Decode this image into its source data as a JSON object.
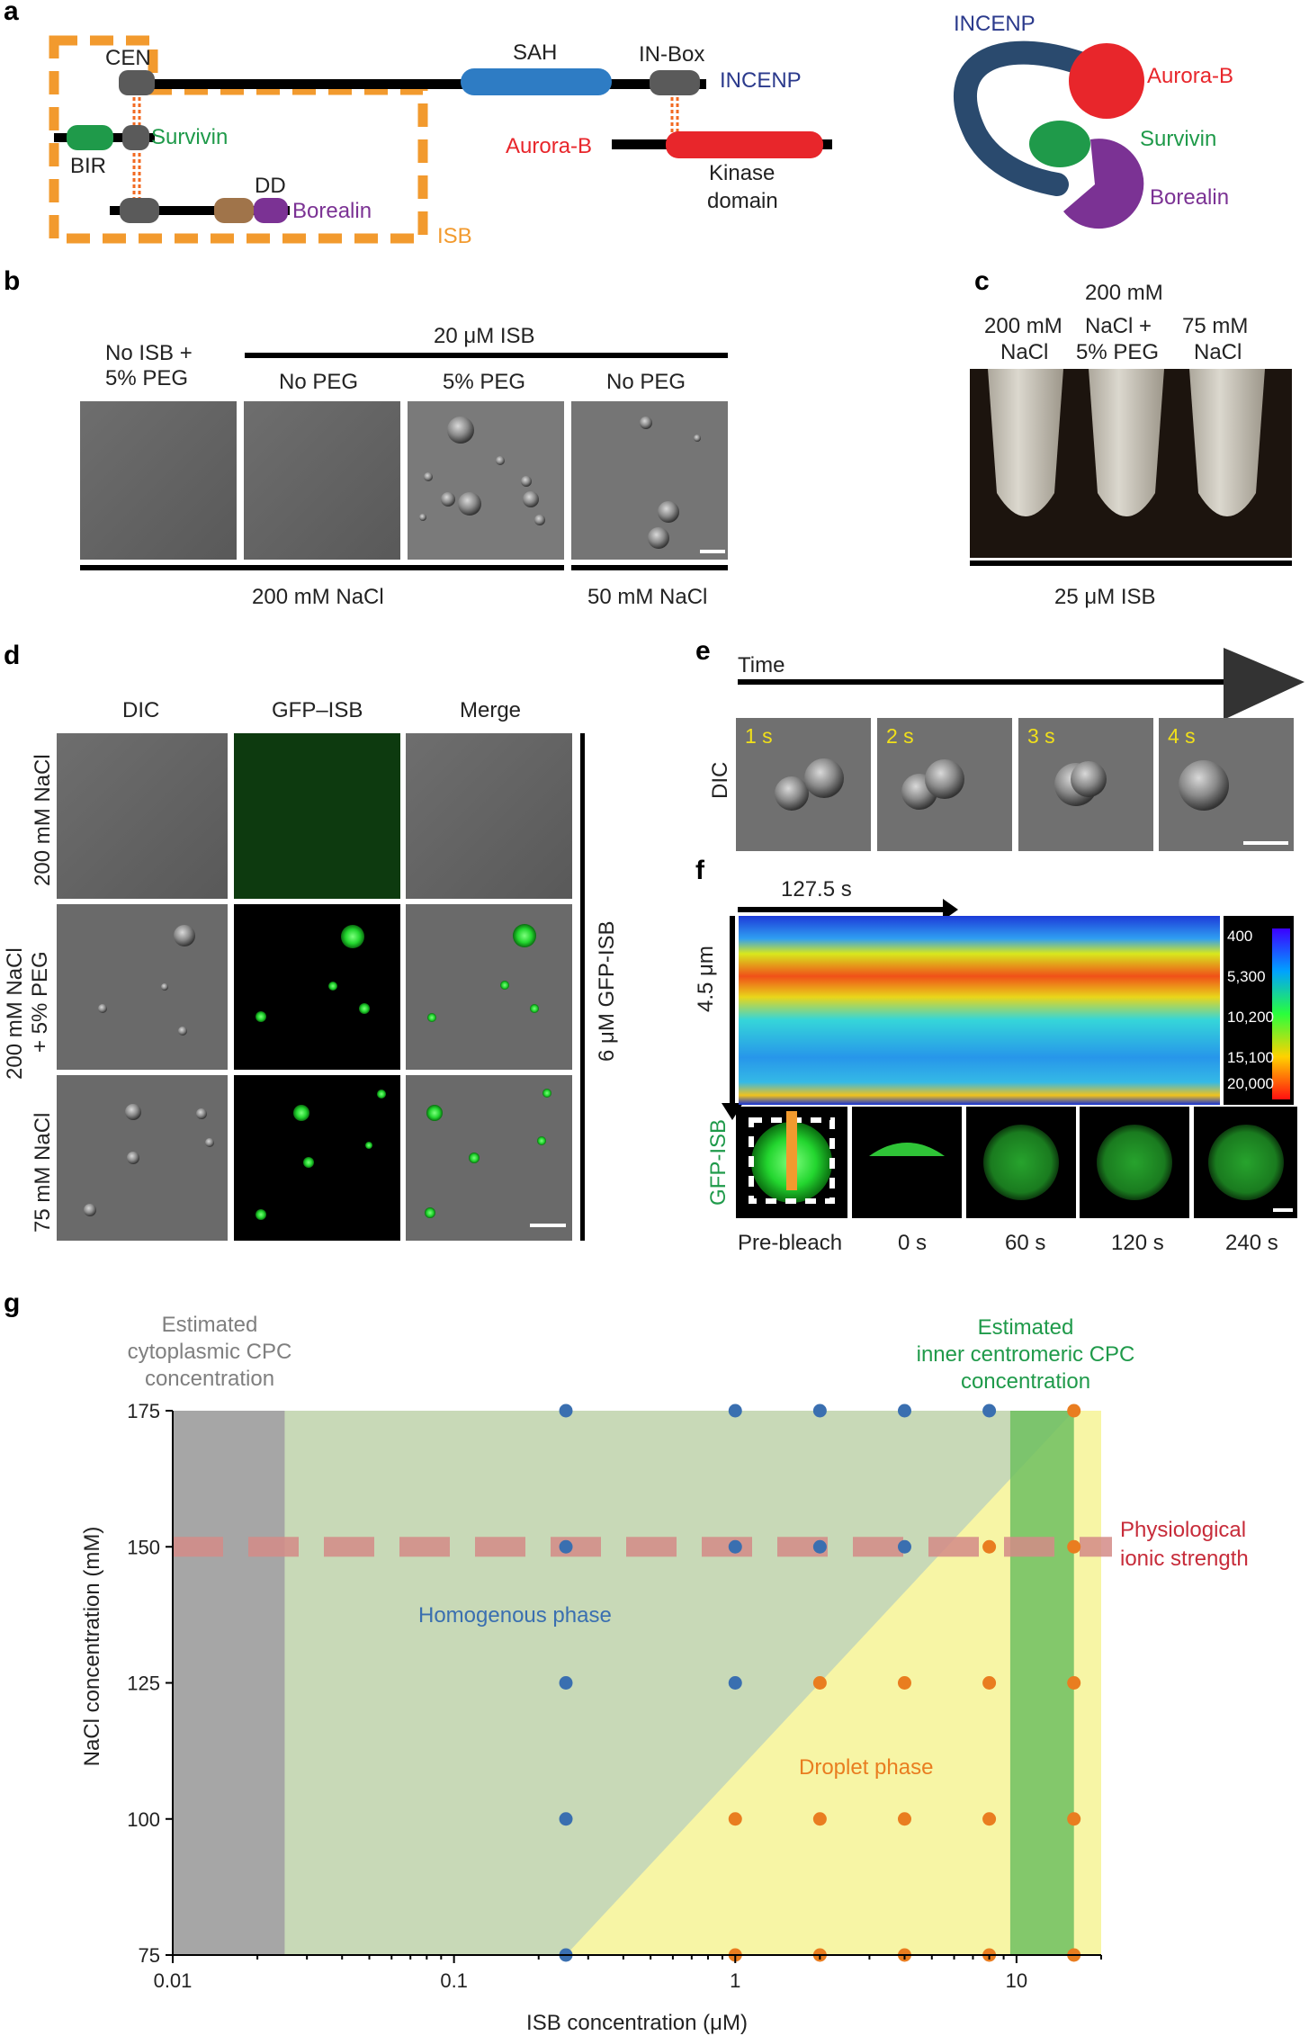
{
  "panels": {
    "a": "a",
    "b": "b",
    "c": "c",
    "d": "d",
    "e": "e",
    "f": "f",
    "g": "g"
  },
  "a": {
    "cen": "CEN",
    "sah": "SAH",
    "inbox": "IN-Box",
    "incenp": "INCENP",
    "bir": "BIR",
    "survivin": "Survivin",
    "aurorab": "Aurora-B",
    "kinase1": "Kinase",
    "kinase2": "domain",
    "dd": "DD",
    "borealin": "Borealin",
    "isb": "ISB",
    "colors": {
      "incenp": "#2b3a8c",
      "sah": "#2e7cc4",
      "aurora": "#e8262b",
      "survivin": "#1f9a4a",
      "borealin": "#7b3294",
      "isb": "#f29a2e",
      "gray": "#5a5a5a",
      "brown": "#a0744a"
    }
  },
  "b": {
    "cond1a": "No ISB +",
    "cond1b": "5% PEG",
    "isb20": "20 μM ISB",
    "nopeg1": "No PEG",
    "peg5": "5% PEG",
    "nopeg2": "No PEG",
    "nacl200": "200 mM NaCl",
    "nacl50": "50 mM NaCl"
  },
  "c": {
    "t1a": "200 mM",
    "t1b": "NaCl",
    "t2a": "200 mM",
    "t2b": "NaCl +",
    "t2c": "5% PEG",
    "t3a": "75 mM",
    "t3b": "NaCl",
    "isb25": "25 μM ISB"
  },
  "d": {
    "dic": "DIC",
    "gfp": "GFP–ISB",
    "merge": "Merge",
    "row1": "200 mM NaCl",
    "row2a": "200 mM NaCl",
    "row2b": "+ 5% PEG",
    "row3": "75 mM NaCl",
    "side": "6 μM GFP-ISB"
  },
  "e": {
    "time": "Time",
    "dic": "DIC",
    "frames": [
      "1 s",
      "2 s",
      "3 s",
      "4 s"
    ]
  },
  "f": {
    "time": "127.5 s",
    "dist": "4.5 μm",
    "colorbar": [
      "400",
      "5,300",
      "10,200",
      "15,100",
      "20,000"
    ],
    "gfp": "GFP-ISB",
    "frames": [
      "Pre-bleach",
      "0 s",
      "60 s",
      "120 s",
      "240 s"
    ]
  },
  "chart_data": {
    "type": "scatter",
    "xlabel": "ISB concentration (μM)",
    "ylabel": "NaCl concentration (mM)",
    "xscale": "log",
    "xlim": [
      0.01,
      20
    ],
    "ylim": [
      75,
      175
    ],
    "x_ticks": [
      "0.01",
      "0.1",
      "1",
      "10"
    ],
    "y_ticks": [
      "75",
      "100",
      "125",
      "150",
      "175"
    ],
    "annotations": {
      "cyto1": "Estimated",
      "cyto2": "cytoplasmic CPC",
      "cyto3": "concentration",
      "inner1": "Estimated",
      "inner2": "inner centromeric CPC",
      "inner3": "concentration",
      "phys1": "Physiological",
      "phys2": "ionic strength",
      "homog": "Homogenous phase",
      "droplet": "Droplet phase"
    },
    "regions": {
      "cytoplasmic_cpc_max": 0.025,
      "inner_centromeric_cpc": [
        9.5,
        16
      ],
      "physiological_nacl": 150
    },
    "colors": {
      "homogenous": "#3a6fb0",
      "droplet": "#e97d20",
      "gray_band": "#a6a6a6",
      "green_band": "#6fc060",
      "yellow": "#f7f5a5",
      "phys_line": "#d48b88"
    },
    "series": [
      {
        "name": "Homogenous phase",
        "points": [
          [
            0.25,
            175
          ],
          [
            1,
            175
          ],
          [
            2,
            175
          ],
          [
            4,
            175
          ],
          [
            8,
            175
          ],
          [
            0.25,
            150
          ],
          [
            1,
            150
          ],
          [
            2,
            150
          ],
          [
            4,
            150
          ],
          [
            0.25,
            125
          ],
          [
            1,
            125
          ],
          [
            0.25,
            100
          ],
          [
            0.25,
            75
          ]
        ]
      },
      {
        "name": "Droplet phase",
        "points": [
          [
            16,
            175
          ],
          [
            8,
            150
          ],
          [
            16,
            150
          ],
          [
            2,
            125
          ],
          [
            4,
            125
          ],
          [
            8,
            125
          ],
          [
            16,
            125
          ],
          [
            1,
            100
          ],
          [
            2,
            100
          ],
          [
            4,
            100
          ],
          [
            8,
            100
          ],
          [
            16,
            100
          ],
          [
            1,
            75
          ],
          [
            2,
            75
          ],
          [
            4,
            75
          ],
          [
            8,
            75
          ],
          [
            16,
            75
          ]
        ]
      }
    ]
  }
}
